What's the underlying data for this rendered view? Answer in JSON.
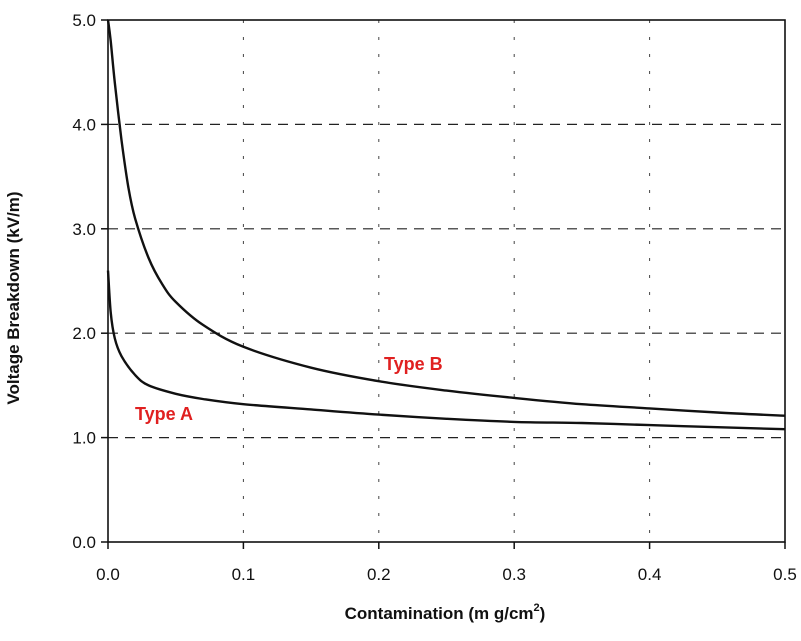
{
  "chart_data": {
    "type": "line",
    "title": "",
    "xlabel": "Contamination (m g/cm",
    "xlabel_superscript": "2",
    "xlabel_suffix": ")",
    "ylabel": "Voltage Breakdown (kV/m)",
    "xlim": [
      0,
      0.5
    ],
    "ylim": [
      0,
      5
    ],
    "x_ticks": [
      "0.0",
      "0.1",
      "0.2",
      "0.3",
      "0.4",
      "0.5"
    ],
    "y_ticks": [
      "0.0",
      "1.0",
      "2.0",
      "3.0",
      "4.0",
      "5.0"
    ],
    "grid": true,
    "label_color": "#e02020",
    "series": [
      {
        "name": "Type A",
        "x": [
          0.0,
          0.002,
          0.005,
          0.01,
          0.02,
          0.03,
          0.05,
          0.07,
          0.1,
          0.15,
          0.2,
          0.25,
          0.3,
          0.35,
          0.4,
          0.45,
          0.5
        ],
        "y": [
          2.6,
          2.2,
          1.95,
          1.78,
          1.6,
          1.5,
          1.42,
          1.37,
          1.32,
          1.27,
          1.22,
          1.18,
          1.15,
          1.14,
          1.12,
          1.1,
          1.08
        ]
      },
      {
        "name": "Type B",
        "x": [
          0.0,
          0.002,
          0.005,
          0.01,
          0.015,
          0.02,
          0.03,
          0.04,
          0.05,
          0.07,
          0.1,
          0.15,
          0.2,
          0.25,
          0.3,
          0.35,
          0.4,
          0.45,
          0.5
        ],
        "y": [
          5.0,
          4.8,
          4.4,
          3.85,
          3.4,
          3.1,
          2.72,
          2.47,
          2.3,
          2.08,
          1.87,
          1.67,
          1.54,
          1.45,
          1.38,
          1.32,
          1.28,
          1.24,
          1.21
        ]
      }
    ]
  }
}
